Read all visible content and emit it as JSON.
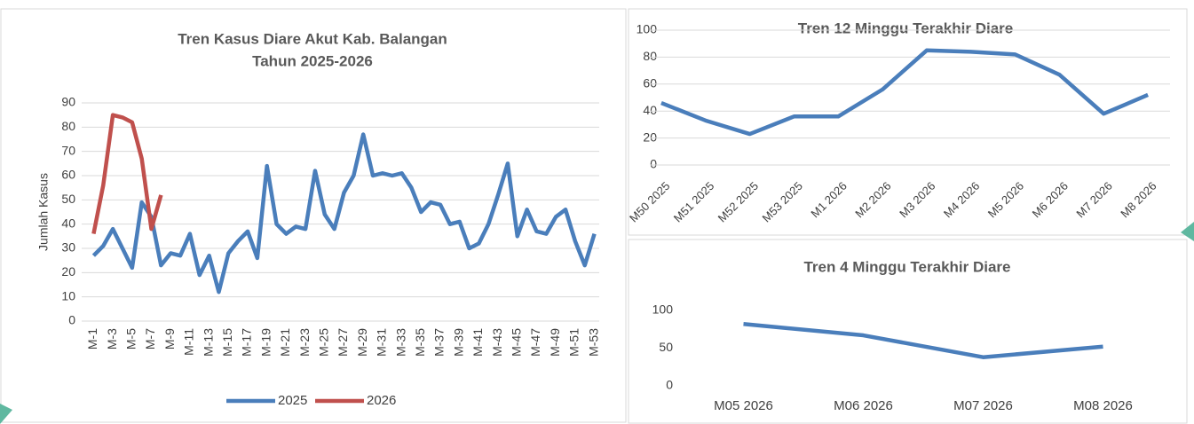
{
  "chart_data": [
    {
      "type": "line",
      "title": "Tren Kasus Diare Akut Kab. Balangan",
      "subtitle": "Tahun 2025-2026",
      "y_label": "Jumlah Kasus",
      "categories": [
        "M-1",
        null,
        "M-3",
        null,
        "M-5",
        null,
        "M-7",
        null,
        "M-9",
        null,
        "M-11",
        null,
        "M-13",
        null,
        "M-15",
        null,
        "M-17",
        null,
        "M-19",
        null,
        "M-21",
        null,
        "M-23",
        null,
        "M-25",
        null,
        "M-27",
        null,
        "M-29",
        null,
        "M-31",
        null,
        "M-33",
        null,
        "M-35",
        null,
        "M-37",
        null,
        "M-39",
        null,
        "M-41",
        null,
        "M-43",
        null,
        "M-45",
        null,
        "M-47",
        null,
        "M-49",
        null,
        "M-51",
        null,
        "M-53"
      ],
      "series": [
        {
          "name": "2025",
          "color": "#4a7ebb",
          "values": [
            27,
            31,
            38,
            30,
            22,
            49,
            43,
            23,
            28,
            27,
            36,
            19,
            27,
            12,
            28,
            33,
            37,
            26,
            64,
            40,
            36,
            39,
            38,
            62,
            44,
            38,
            53,
            60,
            77,
            60,
            61,
            60,
            61,
            55,
            45,
            49,
            48,
            40,
            41,
            30,
            32,
            40,
            52,
            65,
            35,
            46,
            37,
            36,
            43,
            46,
            33,
            23,
            36
          ]
        },
        {
          "name": "2026",
          "color": "#c0504d",
          "values": [
            36,
            56,
            85,
            84,
            82,
            67,
            38,
            52,
            null,
            null,
            null,
            null,
            null,
            null,
            null,
            null,
            null,
            null,
            null,
            null,
            null,
            null,
            null,
            null,
            null,
            null,
            null,
            null,
            null,
            null,
            null,
            null,
            null,
            null,
            null,
            null,
            null,
            null,
            null,
            null,
            null,
            null,
            null,
            null,
            null,
            null,
            null,
            null,
            null,
            null,
            null,
            null,
            null
          ]
        }
      ],
      "ylim": [
        0,
        90
      ],
      "yticks": [
        0,
        10,
        20,
        30,
        40,
        50,
        60,
        70,
        80,
        90
      ],
      "grid": true,
      "legend": "bottom"
    },
    {
      "type": "line",
      "title": "Tren 12 Minggu Terakhir Diare",
      "categories": [
        "M50 2025",
        "M51 2025",
        "M52 2025",
        "M53 2025",
        "M1 2026",
        "M2 2026",
        "M3 2026",
        "M4 2026",
        "M5 2026",
        "M6 2026",
        "M7 2026",
        "M8 2026"
      ],
      "values": [
        46,
        33,
        23,
        36,
        36,
        56,
        85,
        84,
        82,
        67,
        38,
        52
      ],
      "color": "#4a7ebb",
      "ylim": [
        0,
        100
      ],
      "yticks": [
        0,
        20,
        40,
        60,
        80,
        100
      ],
      "grid": true
    },
    {
      "type": "line",
      "title": "Tren 4 Minggu Terakhir Diare",
      "categories": [
        "M05 2026",
        "M06 2026",
        "M07 2026",
        "M08 2026"
      ],
      "values": [
        82,
        67,
        38,
        52
      ],
      "color": "#4a7ebb",
      "ylim": [
        0,
        100
      ],
      "yticks": [
        0,
        50,
        100
      ],
      "grid": false
    }
  ]
}
